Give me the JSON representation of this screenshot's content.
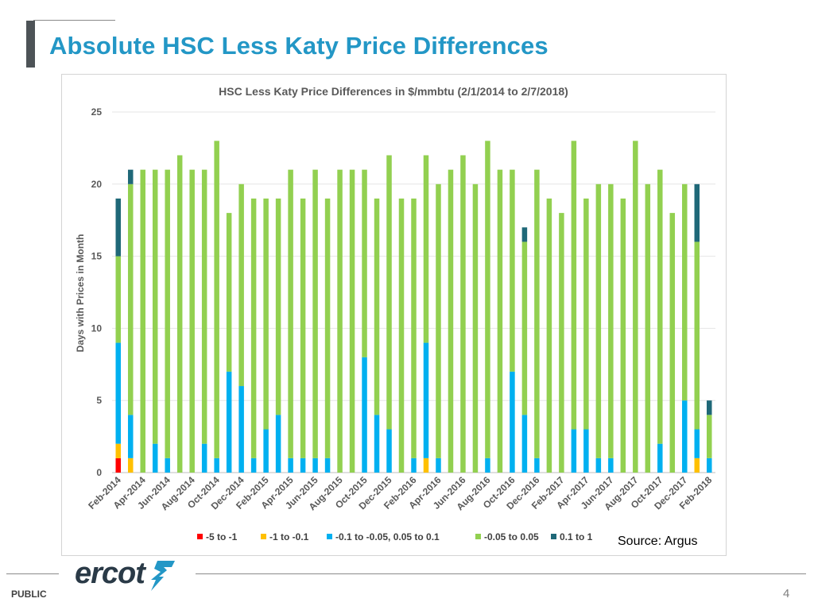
{
  "slide": {
    "title": "Absolute HSC Less Katy Price Differences",
    "source": "Source: Argus",
    "footer_label": "PUBLIC",
    "page_number": "4",
    "logo_text": "ercot"
  },
  "colors": {
    "title": "#2397c6",
    "s_red": "#ff0000",
    "s_orange": "#ffc000",
    "s_blue": "#00b0f0",
    "s_green": "#92d050",
    "s_teal": "#1f6878"
  },
  "chart_data": {
    "type": "bar",
    "stacked": true,
    "title": "HSC Less Katy Price Differences in $/mmbtu (2/1/2014 to 2/7/2018)",
    "xlabel": "",
    "ylabel": "Days with Prices in Month",
    "ylim": [
      0,
      25
    ],
    "yticks": [
      0,
      5,
      10,
      15,
      20,
      25
    ],
    "grid": true,
    "legend_position": "bottom",
    "categories": [
      "Feb-2014",
      "Mar-2014",
      "Apr-2014",
      "May-2014",
      "Jun-2014",
      "Jul-2014",
      "Aug-2014",
      "Sep-2014",
      "Oct-2014",
      "Nov-2014",
      "Dec-2014",
      "Jan-2015",
      "Feb-2015",
      "Mar-2015",
      "Apr-2015",
      "May-2015",
      "Jun-2015",
      "Jul-2015",
      "Aug-2015",
      "Sep-2015",
      "Oct-2015",
      "Nov-2015",
      "Dec-2015",
      "Jan-2016",
      "Feb-2016",
      "Mar-2016",
      "Apr-2016",
      "May-2016",
      "Jun-2016",
      "Jul-2016",
      "Aug-2016",
      "Sep-2016",
      "Oct-2016",
      "Nov-2016",
      "Dec-2016",
      "Jan-2017",
      "Feb-2017",
      "Mar-2017",
      "Apr-2017",
      "May-2017",
      "Jun-2017",
      "Jul-2017",
      "Aug-2017",
      "Sep-2017",
      "Oct-2017",
      "Nov-2017",
      "Dec-2017",
      "Jan-2018",
      "Feb-2018"
    ],
    "tick_labels_shown": [
      "Feb-2014",
      "Apr-2014",
      "Jun-2014",
      "Aug-2014",
      "Oct-2014",
      "Dec-2014",
      "Feb-2015",
      "Apr-2015",
      "Jun-2015",
      "Aug-2015",
      "Oct-2015",
      "Dec-2015",
      "Feb-2016",
      "Apr-2016",
      "Jun-2016",
      "Aug-2016",
      "Oct-2016",
      "Dec-2016",
      "Feb-2017",
      "Apr-2017",
      "Jun-2017",
      "Aug-2017",
      "Oct-2017",
      "Dec-2017",
      "Feb-2018"
    ],
    "series": [
      {
        "name": "-5 to -1",
        "color": "#ff0000",
        "values": [
          1,
          0,
          0,
          0,
          0,
          0,
          0,
          0,
          0,
          0,
          0,
          0,
          0,
          0,
          0,
          0,
          0,
          0,
          0,
          0,
          0,
          0,
          0,
          0,
          0,
          0,
          0,
          0,
          0,
          0,
          0,
          0,
          0,
          0,
          0,
          0,
          0,
          0,
          0,
          0,
          0,
          0,
          0,
          0,
          0,
          0,
          0,
          0,
          0
        ]
      },
      {
        "name": "-1 to -0.1",
        "color": "#ffc000",
        "values": [
          1,
          1,
          0,
          0,
          0,
          0,
          0,
          0,
          0,
          0,
          0,
          0,
          0,
          0,
          0,
          0,
          0,
          0,
          0,
          0,
          0,
          0,
          0,
          0,
          0,
          1,
          0,
          0,
          0,
          0,
          0,
          0,
          0,
          0,
          0,
          0,
          0,
          0,
          0,
          0,
          0,
          0,
          0,
          0,
          0,
          0,
          0,
          1,
          0
        ]
      },
      {
        "name": "-0.1 to -0.05, 0.05 to 0.1",
        "color": "#00b0f0",
        "values": [
          7,
          3,
          0,
          2,
          1,
          0,
          0,
          2,
          1,
          7,
          6,
          1,
          3,
          4,
          1,
          1,
          1,
          1,
          0,
          0,
          8,
          4,
          3,
          0,
          1,
          8,
          1,
          0,
          0,
          0,
          1,
          0,
          7,
          4,
          1,
          0,
          0,
          3,
          3,
          1,
          1,
          0,
          0,
          0,
          2,
          0,
          5,
          2,
          1
        ]
      },
      {
        "name": "-0.05 to 0.05",
        "color": "#92d050",
        "values": [
          6,
          16,
          21,
          19,
          20,
          22,
          21,
          19,
          22,
          11,
          14,
          18,
          16,
          15,
          20,
          18,
          20,
          18,
          21,
          21,
          13,
          15,
          19,
          19,
          18,
          13,
          19,
          21,
          22,
          20,
          22,
          21,
          14,
          12,
          20,
          19,
          18,
          20,
          16,
          19,
          19,
          19,
          23,
          20,
          19,
          18,
          15,
          13,
          3
        ]
      },
      {
        "name": "0.1 to 1",
        "color": "#1f6878",
        "values": [
          4,
          1,
          0,
          0,
          0,
          0,
          0,
          0,
          0,
          0,
          0,
          0,
          0,
          0,
          0,
          0,
          0,
          0,
          0,
          0,
          0,
          0,
          0,
          0,
          0,
          0,
          0,
          0,
          0,
          0,
          0,
          0,
          0,
          1,
          0,
          0,
          0,
          0,
          0,
          0,
          0,
          0,
          0,
          0,
          0,
          0,
          0,
          4,
          1
        ]
      }
    ]
  }
}
